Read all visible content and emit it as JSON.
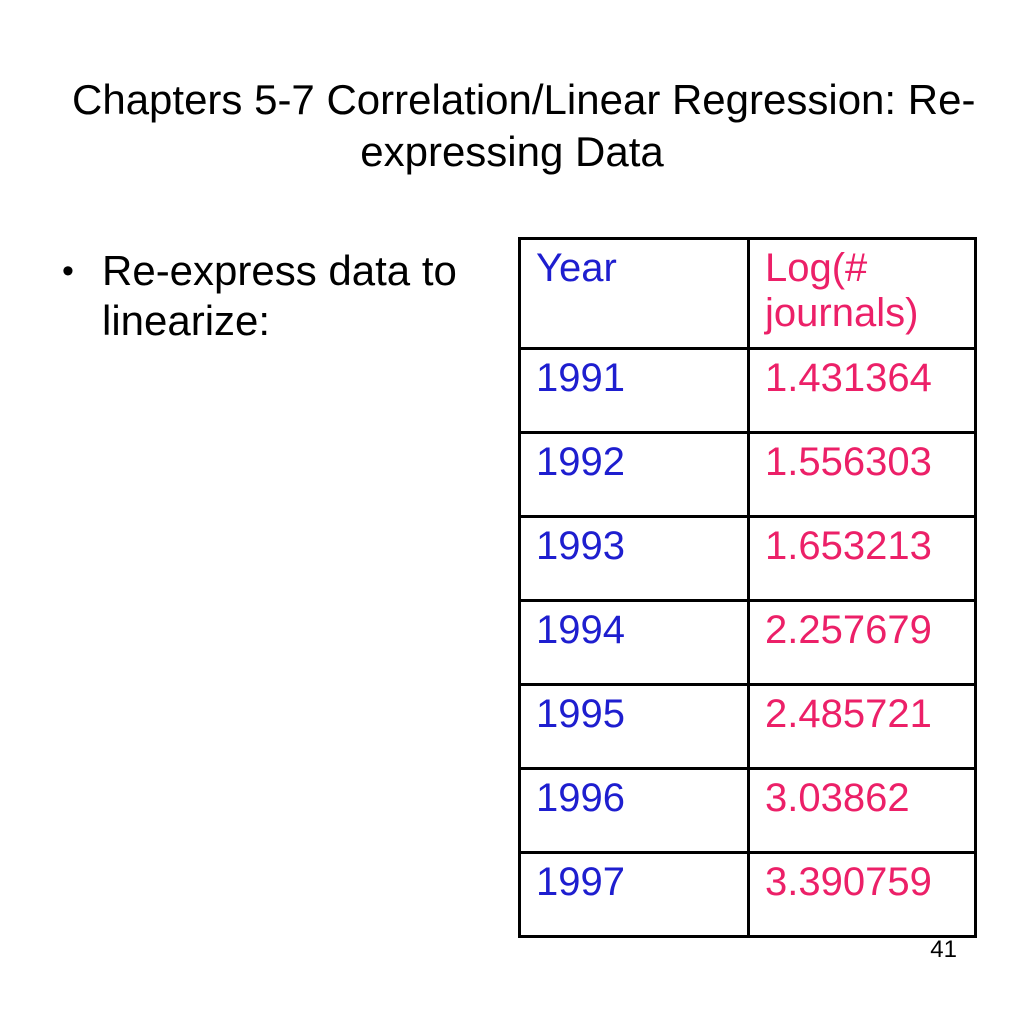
{
  "slide": {
    "title": {
      "full": "Chapters 5-7 Correlation/Linear Regression: Re-expressing Data",
      "lines": [
        "Chapters 5-7 Correlation/Linear Regression: Re-",
        "expressing Data"
      ]
    },
    "bullet": {
      "glyph": "•",
      "full": "Re-express data to linearize:",
      "lines": [
        "Re-express data to",
        "linearize:"
      ]
    },
    "page_number": "41"
  },
  "chart_data": {
    "type": "table",
    "title": "Year vs Log(# journals)",
    "columns": [
      "Year",
      "Log(# journals)"
    ],
    "rows": [
      [
        "1991",
        "1.431364"
      ],
      [
        "1992",
        "1.556303"
      ],
      [
        "1993",
        "1.653213"
      ],
      [
        "1994",
        "2.257679"
      ],
      [
        "1995",
        "2.485721"
      ],
      [
        "1996",
        "3.03862"
      ],
      [
        "1997",
        "3.390759"
      ]
    ]
  },
  "colors": {
    "year_color": "#1E1ECF",
    "log_color": "#EC2068",
    "text_color": "#000000",
    "border_color": "#000000",
    "background": "#FFFFFF"
  }
}
